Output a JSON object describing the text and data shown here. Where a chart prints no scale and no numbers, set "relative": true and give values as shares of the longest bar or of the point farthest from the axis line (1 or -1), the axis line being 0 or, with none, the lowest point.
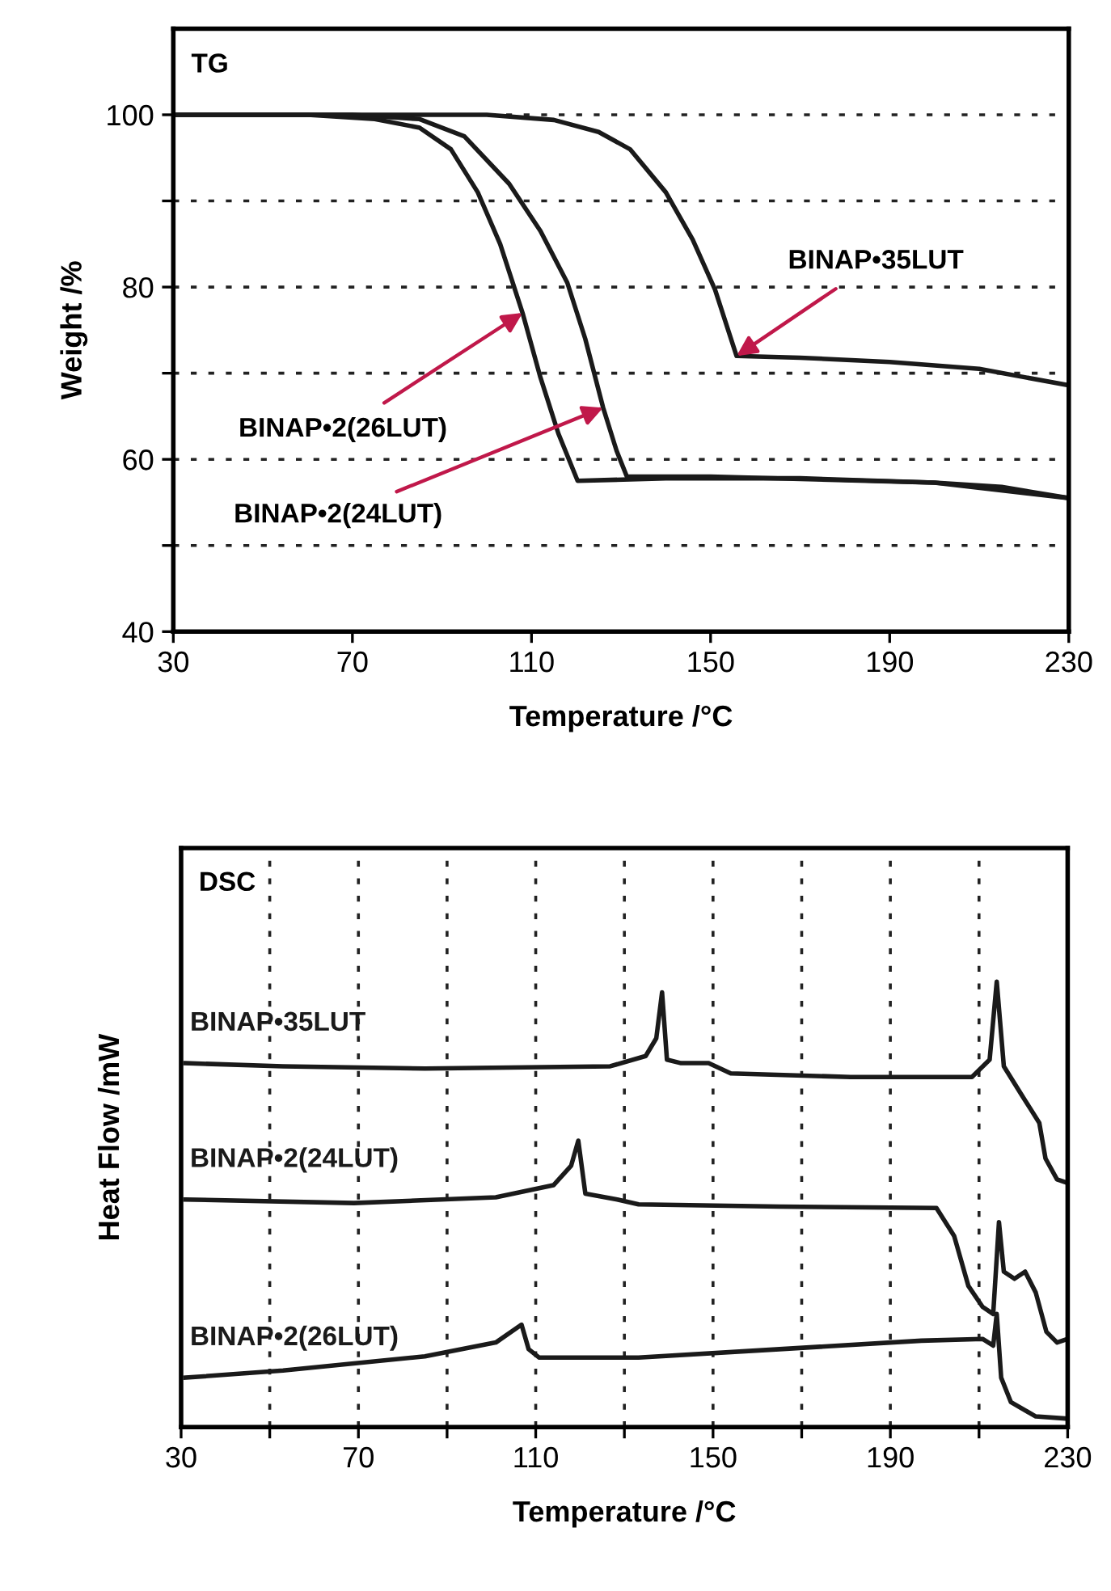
{
  "chart_data": [
    {
      "type": "line",
      "title": "TG",
      "xlabel": "Temperature /°C",
      "ylabel": "Weight /%",
      "xlim": [
        30,
        230
      ],
      "xticks": [
        30,
        70,
        110,
        150,
        190,
        230
      ],
      "ylim": [
        40,
        110
      ],
      "yticks": [
        40,
        {
          "value": 50,
          "label": null
        },
        60,
        {
          "value": 70,
          "label": null
        },
        80,
        {
          "value": 90,
          "label": null
        },
        100
      ],
      "grid": "y",
      "line_style": "solid",
      "series": [
        {
          "color": "#1a1a1a",
          "x": [
            30,
            60,
            75,
            85,
            92,
            98,
            103,
            108,
            112,
            116,
            120.3,
            140,
            170,
            200,
            215,
            230
          ],
          "values": [
            100,
            100,
            99.5,
            98.5,
            96,
            91,
            85,
            77,
            69.5,
            63,
            57.5,
            57.8,
            57.8,
            57.3,
            56.8,
            55.5
          ]
        },
        {
          "color": "#1a1a1a",
          "x": [
            30,
            70,
            85,
            95,
            105,
            112,
            118,
            122,
            126,
            129,
            131.3,
            150,
            200,
            230
          ],
          "values": [
            100,
            100,
            99.5,
            97.5,
            92,
            86.5,
            80.5,
            74,
            66,
            61,
            58,
            58,
            57.3,
            55.5
          ]
        },
        {
          "color": "#1a1a1a",
          "x": [
            30,
            100,
            115,
            125,
            132,
            140,
            146,
            151,
            155.8,
            170,
            190,
            210,
            230
          ],
          "values": [
            100,
            100,
            99.4,
            98,
            96,
            91,
            85.5,
            79.7,
            72,
            71.8,
            71.3,
            70.5,
            68.6
          ]
        }
      ],
      "annotations": [
        {
          "text": "BINAP•35LUT",
          "x": 155.8,
          "y": 72
        },
        {
          "text": "BINAP•2(26LUT)",
          "x": 108,
          "y": 77
        },
        {
          "text": "BINAP•2(24LUT)",
          "x": 126,
          "y": 66
        }
      ]
    },
    {
      "type": "line",
      "title": "DSC",
      "xlabel": "Temperature /°C",
      "ylabel": "Heat Flow /mW",
      "relative": true,
      "xlim": [
        30,
        230
      ],
      "xticks": [
        30,
        {
          "value": 50,
          "label": null
        },
        70,
        {
          "value": 90,
          "label": null
        },
        110,
        {
          "value": 130,
          "label": null
        },
        150,
        {
          "value": 170,
          "label": null
        },
        190,
        {
          "value": 210,
          "label": null
        },
        230
      ],
      "grid": "x",
      "line_style": "solid",
      "series": [
        {
          "name": "BINAP•35LUT",
          "color": "#1a1a1a",
          "x": [
            31,
            53,
            85,
            126.8,
            134.8,
            137.2,
            138.5,
            139.6,
            142.8,
            149,
            154,
            181,
            208.4,
            212.4,
            214,
            215.6,
            219.6,
            223.6,
            225,
            227.6,
            230
          ],
          "values": [
            0.817,
            0.81,
            0.805,
            0.81,
            0.833,
            0.873,
            0.976,
            0.825,
            0.817,
            0.817,
            0.794,
            0.786,
            0.786,
            0.825,
            1.0,
            0.81,
            0.746,
            0.683,
            0.603,
            0.556,
            0.548
          ]
        },
        {
          "name": "BINAP•2(24LUT)",
          "color": "#1a1a1a",
          "x": [
            31,
            69,
            101,
            114,
            118,
            119.6,
            121.2,
            128.4,
            133.2,
            165,
            200.4,
            204.4,
            207.6,
            210.8,
            213.2,
            214.5,
            215.6,
            218,
            220.4,
            222.8,
            225.2,
            227.6,
            230
          ],
          "values": [
            0.511,
            0.503,
            0.516,
            0.543,
            0.587,
            0.643,
            0.524,
            0.511,
            0.5,
            0.495,
            0.492,
            0.429,
            0.317,
            0.27,
            0.254,
            0.46,
            0.349,
            0.333,
            0.349,
            0.302,
            0.214,
            0.19,
            0.198
          ]
        },
        {
          "name": "BINAP•2(26LUT)",
          "color": "#1a1a1a",
          "x": [
            31,
            53,
            85,
            101,
            106.8,
            108.4,
            110.8,
            133.2,
            165,
            197,
            210.8,
            213.2,
            214,
            215,
            217.2,
            222.8,
            230
          ],
          "values": [
            0.111,
            0.127,
            0.159,
            0.19,
            0.23,
            0.175,
            0.156,
            0.156,
            0.175,
            0.194,
            0.198,
            0.183,
            0.254,
            0.111,
            0.056,
            0.024,
            0.019
          ]
        }
      ]
    }
  ]
}
